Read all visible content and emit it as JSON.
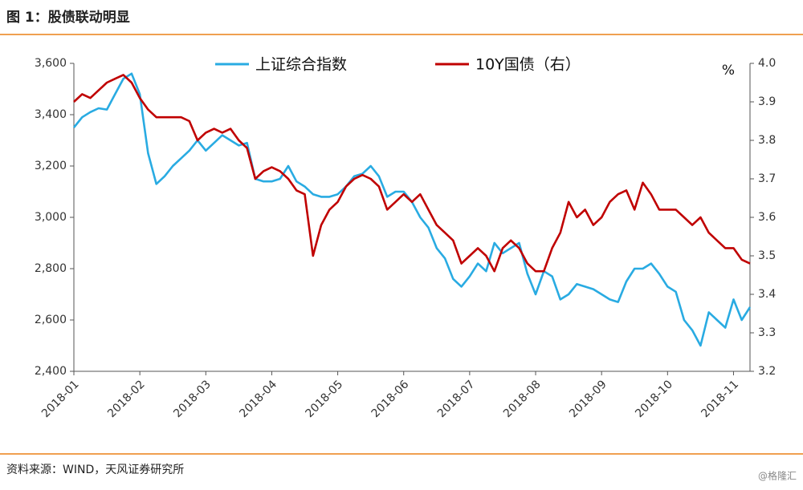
{
  "chart_data": {
    "type": "line",
    "title": "图 1：股债联动明显",
    "source": "资料来源：WIND，天风证券研究所",
    "watermark": "@格隆汇",
    "y2_unit": "%",
    "categories": [
      "2018-01",
      null,
      null,
      null,
      null,
      null,
      null,
      null,
      "2018-02",
      null,
      null,
      null,
      null,
      null,
      null,
      null,
      "2018-03",
      null,
      null,
      null,
      null,
      null,
      null,
      null,
      "2018-04",
      null,
      null,
      null,
      null,
      null,
      null,
      null,
      "2018-05",
      null,
      null,
      null,
      null,
      null,
      null,
      null,
      "2018-06",
      null,
      null,
      null,
      null,
      null,
      null,
      null,
      "2018-07",
      null,
      null,
      null,
      null,
      null,
      null,
      null,
      "2018-08",
      null,
      null,
      null,
      null,
      null,
      null,
      null,
      "2018-09",
      null,
      null,
      null,
      null,
      null,
      null,
      null,
      "2018-10",
      null,
      null,
      null,
      null,
      null,
      null,
      null,
      "2018-11",
      null,
      null
    ],
    "series": [
      {
        "name": "上证综合指数",
        "color": "#29abe2",
        "axis": "y",
        "values": [
          3350,
          3390,
          3410,
          3425,
          3420,
          3480,
          3540,
          3560,
          3480,
          3250,
          3130,
          3160,
          3200,
          3230,
          3260,
          3300,
          3260,
          3290,
          3320,
          3300,
          3280,
          3290,
          3150,
          3140,
          3140,
          3150,
          3200,
          3140,
          3120,
          3090,
          3080,
          3080,
          3090,
          3120,
          3160,
          3170,
          3200,
          3160,
          3080,
          3100,
          3100,
          3060,
          3000,
          2960,
          2880,
          2840,
          2760,
          2730,
          2770,
          2820,
          2790,
          2900,
          2860,
          2880,
          2900,
          2780,
          2700,
          2790,
          2770,
          2680,
          2700,
          2740,
          2730,
          2720,
          2700,
          2680,
          2670,
          2750,
          2800,
          2800,
          2820,
          2780,
          2730,
          2710,
          2600,
          2560,
          2500,
          2630,
          2600,
          2570,
          2680,
          2600,
          2650
        ]
      },
      {
        "name": "10Y国债（右）",
        "color": "#c00000",
        "axis": "y2",
        "values": [
          3.9,
          3.92,
          3.91,
          3.93,
          3.95,
          3.96,
          3.97,
          3.95,
          3.91,
          3.88,
          3.86,
          3.86,
          3.86,
          3.86,
          3.85,
          3.8,
          3.82,
          3.83,
          3.82,
          3.83,
          3.8,
          3.78,
          3.7,
          3.72,
          3.73,
          3.72,
          3.7,
          3.67,
          3.66,
          3.5,
          3.58,
          3.62,
          3.64,
          3.68,
          3.7,
          3.71,
          3.7,
          3.68,
          3.62,
          3.64,
          3.66,
          3.64,
          3.66,
          3.62,
          3.58,
          3.56,
          3.54,
          3.48,
          3.5,
          3.52,
          3.5,
          3.46,
          3.52,
          3.54,
          3.52,
          3.48,
          3.46,
          3.46,
          3.52,
          3.56,
          3.64,
          3.6,
          3.62,
          3.58,
          3.6,
          3.64,
          3.66,
          3.67,
          3.62,
          3.69,
          3.66,
          3.62,
          3.62,
          3.62,
          3.6,
          3.58,
          3.6,
          3.56,
          3.54,
          3.52,
          3.52,
          3.49,
          3.48
        ]
      }
    ],
    "ylim": [
      2400,
      3600
    ],
    "yticks": [
      {
        "value": 2400,
        "label": "2,400"
      },
      {
        "value": 2600,
        "label": "2,600"
      },
      {
        "value": 2800,
        "label": "2,800"
      },
      {
        "value": 3000,
        "label": "3,000"
      },
      {
        "value": 3200,
        "label": "3,200"
      },
      {
        "value": 3400,
        "label": "3,400"
      },
      {
        "value": 3600,
        "label": "3,600"
      }
    ],
    "y2lim": [
      3.2,
      4.0
    ],
    "y2ticks": [
      3.2,
      3.3,
      3.4,
      3.5,
      3.6,
      3.7,
      3.8,
      3.9,
      {
        "value": 4,
        "label": "4.0"
      }
    ],
    "grid": false,
    "legend": "top"
  }
}
